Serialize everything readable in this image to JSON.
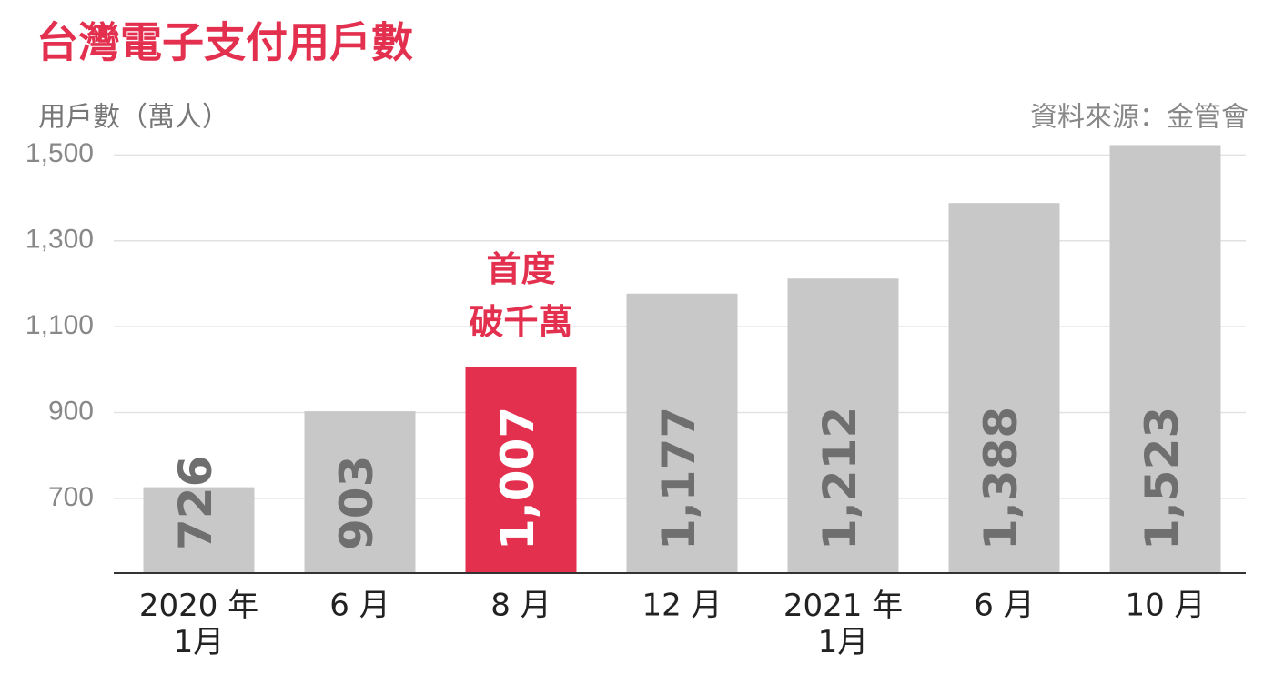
{
  "chart_data": {
    "type": "bar",
    "title": "台灣電子支付用戶數",
    "y_label": "用戶數（萬人）",
    "source": "資料來源：金管會",
    "annotation": "首度\n破千萬",
    "categories": [
      "2020 年\n1月",
      "6 月",
      "8 月",
      "12 月",
      "2021 年\n1月",
      "6 月",
      "10 月"
    ],
    "values": [
      726,
      903,
      1007,
      1177,
      1212,
      1388,
      1523
    ],
    "value_labels": [
      "726",
      "903",
      "1,007",
      "1,177",
      "1,212",
      "1,388",
      "1,523"
    ],
    "colors": [
      "#c8c8c8",
      "#c8c8c8",
      "#e3304f",
      "#c8c8c8",
      "#c8c8c8",
      "#c8c8c8",
      "#c8c8c8"
    ],
    "ylim": [
      526,
      1560
    ],
    "yticks": [
      700,
      900,
      {
        "value": 1100,
        "label": "1,100"
      },
      {
        "value": 1300,
        "label": "1,300"
      },
      {
        "value": 1500,
        "label": "1,500"
      }
    ],
    "grid": true
  }
}
